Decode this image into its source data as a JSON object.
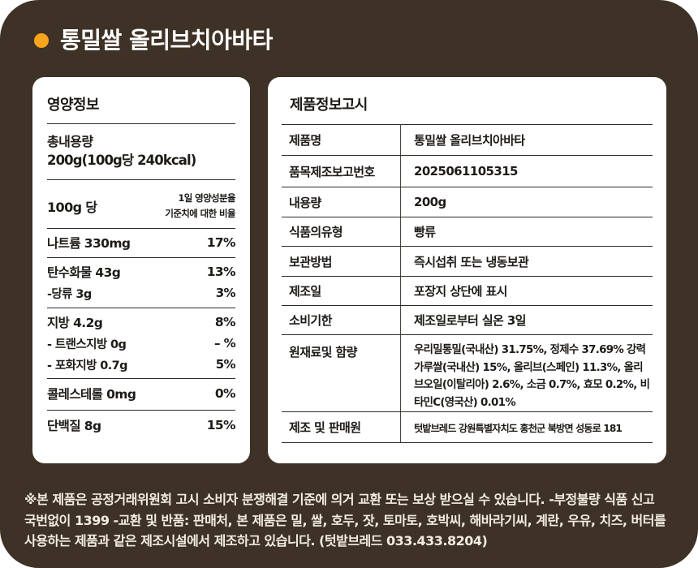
{
  "page": {
    "title": "통밀쌀 올리브치아바타"
  },
  "colors": {
    "panel_brown": "#3E3125",
    "accent_orange": "#F7A51D",
    "card_white": "#FFFFFF",
    "ink": "#1E1B17",
    "footer_cream": "#F3EDE1"
  },
  "nutrition": {
    "heading": "영양정보",
    "total_label": "총내용량",
    "total_value": "200g(100g당 240kcal)",
    "serving_label": "100g 당",
    "dv_note_line1": "1일 영양성분율",
    "dv_note_line2": "기준치에 대한 비율",
    "groups": [
      {
        "rows": [
          {
            "label": "나트륨 330mg",
            "percent": "17%"
          }
        ]
      },
      {
        "rows": [
          {
            "label": "탄수화물 43g",
            "percent": "13%"
          },
          {
            "label": "-당류  3g",
            "percent": "3%"
          }
        ]
      },
      {
        "rows": [
          {
            "label": "지방 4.2g",
            "percent": "8%"
          },
          {
            "label": "- 트랜스지방 0g",
            "percent": "– %"
          },
          {
            "label": "- 포화지방 0.7g",
            "percent": "5%"
          }
        ]
      },
      {
        "rows": [
          {
            "label": "콜레스테롤 0mg",
            "percent": "0%"
          }
        ]
      },
      {
        "rows": [
          {
            "label": "단백질 8g",
            "percent": "15%"
          }
        ]
      }
    ]
  },
  "product": {
    "heading": "제품정보고시",
    "rows": [
      {
        "label": "제품명",
        "value": "통밀쌀 올리브치아바타"
      },
      {
        "label": "품목제조보고번호",
        "value": "2025061105315"
      },
      {
        "label": "내용량",
        "value": "200g"
      },
      {
        "label": "식품의유형",
        "value": "빵류"
      },
      {
        "label": "보관방법",
        "value": "즉시섭취 또는 냉동보관"
      },
      {
        "label": "제조일",
        "value": "포장지 상단에 표시"
      },
      {
        "label": "소비기한",
        "value": "제조일로부터 실온 3일"
      },
      {
        "label": "원재료및 함량",
        "value": "우리밀통밀(국내산) 31.75%, 정제수 37.69% 강력가루쌀(국내산) 15%, 올리브(스페인) 11.3%, 올리브오일(이탈리아) 2.6%, 소금 0.7%, 효모 0.2%, 비타민C(영국산) 0.01%"
      },
      {
        "label": "제조 및 판매원",
        "value": "텃밭브레드  강원특별자치도 홍천군 북방면 성동로 181"
      }
    ]
  },
  "footer": {
    "text": "※본 제품은 공정거래위원회 고시 소비자 분쟁해결 기준에 의거 교환 또는 보상 받으실 수 있습니다. -부정불량 식품 신고 국번없이 1399 -교환 및 반품: 판매처, 본 제품은 밀, 쌀, 호두, 잣, 토마토, 호박씨, 해바라기씨, 계란, 우유, 치즈, 버터를 사용하는 제품과 같은 제조시설에서 제조하고 있습니다. (텃밭브레드 033.433.8204)"
  }
}
